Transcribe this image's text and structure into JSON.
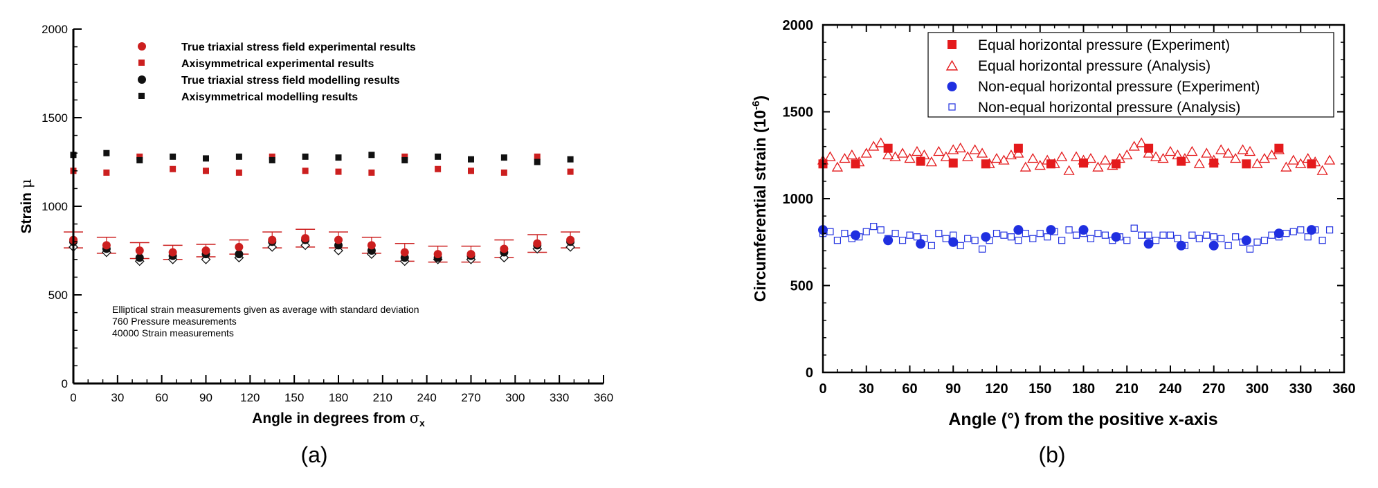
{
  "panels": [
    {
      "caption": "(a)",
      "chart_data": {
        "type": "scatter",
        "title": "",
        "xlabel": "Angle in degrees from σx",
        "xlabel_main": "Angle in degrees from ",
        "xlabel_symbol": "σ",
        "xlabel_sub": "x",
        "ylabel": "Strain μ",
        "ylabel_main": "Strain ",
        "ylabel_symbol": "μ",
        "xlim": [
          0,
          360
        ],
        "ylim": [
          0,
          2000
        ],
        "xticks": [
          "0",
          "30",
          "60",
          "90",
          "120",
          "150",
          "180",
          "210",
          "240",
          "270",
          "300",
          "330",
          "360"
        ],
        "yticks": [
          "0",
          "500",
          "1000",
          "1500",
          "2000"
        ],
        "grid": false,
        "legend_position": "top-left",
        "annotation": [
          "Elliptical strain measurements given as average with standard deviation",
          "760 Pressure measurements",
          "40000 Strain measurements"
        ],
        "series": [
          {
            "name": "True triaxial stress field experimental results",
            "marker": "circle",
            "color": "#cc1f1f",
            "x": [
              0,
              22.5,
              45,
              67.5,
              90,
              112.5,
              135,
              157.5,
              180,
              202.5,
              225,
              247.5,
              270,
              292.5,
              315,
              337.5
            ],
            "y": [
              810,
              780,
              750,
              740,
              750,
              770,
              810,
              820,
              810,
              780,
              740,
              730,
              730,
              760,
              790,
              810
            ],
            "error": [
              45,
              45,
              45,
              40,
              35,
              40,
              45,
              50,
              45,
              45,
              50,
              45,
              45,
              50,
              50,
              45
            ]
          },
          {
            "name": "Axisymmetrical experimental results",
            "marker": "square",
            "color": "#cc1f1f",
            "x": [
              0,
              22.5,
              45,
              67.5,
              90,
              112.5,
              135,
              157.5,
              180,
              202.5,
              225,
              247.5,
              270,
              292.5,
              315,
              337.5
            ],
            "y": [
              1200,
              1190,
              1280,
              1210,
              1200,
              1190,
              1280,
              1200,
              1195,
              1190,
              1280,
              1210,
              1200,
              1190,
              1280,
              1195
            ]
          },
          {
            "name": "True triaxial stress field modelling results",
            "marker": "circle",
            "color": "#111111",
            "x": [
              0,
              22.5,
              45,
              67.5,
              90,
              112.5,
              135,
              157.5,
              180,
              202.5,
              225,
              247.5,
              270,
              292.5,
              315,
              337.5
            ],
            "y": [
              800,
              760,
              710,
              720,
              730,
              730,
              800,
              810,
              780,
              750,
              710,
              710,
              720,
              740,
              780,
              800
            ]
          },
          {
            "name": "Axisymmetrical modelling results",
            "marker": "square",
            "color": "#111111",
            "x": [
              0,
              22.5,
              45,
              67.5,
              90,
              112.5,
              135,
              157.5,
              180,
              202.5,
              225,
              247.5,
              270,
              292.5,
              315,
              337.5
            ],
            "y": [
              1290,
              1300,
              1260,
              1280,
              1270,
              1280,
              1260,
              1280,
              1275,
              1290,
              1260,
              1280,
              1265,
              1275,
              1250,
              1265
            ]
          },
          {
            "name": "",
            "marker": "diamond-open",
            "color": "#111111",
            "legend": false,
            "x": [
              0,
              22.5,
              45,
              67.5,
              90,
              112.5,
              135,
              157.5,
              180,
              202.5,
              225,
              247.5,
              270,
              292.5,
              315,
              337.5
            ],
            "y": [
              770,
              740,
              690,
              700,
              700,
              710,
              770,
              780,
              750,
              730,
              690,
              700,
              700,
              710,
              760,
              770
            ]
          }
        ]
      }
    },
    {
      "caption": "(b)",
      "chart_data": {
        "type": "scatter",
        "title": "",
        "xlabel": "Angle (°) from the positive x-axis",
        "ylabel": "Circumferential strain (10-6)",
        "ylabel_main": "Circumferential strain (10",
        "ylabel_sup": "-6",
        "ylabel_close": ")",
        "xlim": [
          0,
          360
        ],
        "ylim": [
          0,
          2000
        ],
        "xticks": [
          "0",
          "30",
          "60",
          "90",
          "120",
          "150",
          "180",
          "210",
          "240",
          "270",
          "300",
          "330",
          "360"
        ],
        "yticks": [
          "0",
          "500",
          "1000",
          "1500",
          "2000"
        ],
        "grid": false,
        "legend_position": "top-right",
        "series": [
          {
            "name": "Equal horizontal pressure (Experiment)",
            "marker": "square",
            "color": "#e41a1c",
            "x": [
              0,
              22.5,
              45,
              67.5,
              90,
              112.5,
              135,
              157.5,
              180,
              202.5,
              225,
              247.5,
              270,
              292.5,
              315,
              337.5
            ],
            "y": [
              1200,
              1200,
              1290,
              1215,
              1205,
              1200,
              1290,
              1200,
              1205,
              1200,
              1290,
              1215,
              1205,
              1200,
              1290,
              1200
            ]
          },
          {
            "name": "Equal horizontal pressure (Analysis)",
            "marker": "triangle-open",
            "color": "#e41a1c",
            "x": [
              0,
              5,
              10,
              15,
              20,
              25,
              30,
              35,
              40,
              45,
              50,
              55,
              60,
              65,
              70,
              75,
              80,
              85,
              90,
              95,
              100,
              105,
              110,
              115,
              120,
              125,
              130,
              135,
              140,
              145,
              150,
              155,
              160,
              165,
              170,
              175,
              180,
              185,
              190,
              195,
              200,
              205,
              210,
              215,
              220,
              225,
              230,
              235,
              240,
              245,
              250,
              255,
              260,
              265,
              270,
              275,
              280,
              285,
              290,
              295,
              300,
              305,
              310,
              315,
              320,
              325,
              330,
              335,
              340,
              345,
              350
            ],
            "y": [
              1220,
              1240,
              1180,
              1230,
              1250,
              1210,
              1260,
              1300,
              1320,
              1250,
              1240,
              1260,
              1230,
              1270,
              1250,
              1210,
              1270,
              1240,
              1280,
              1290,
              1240,
              1280,
              1260,
              1200,
              1230,
              1220,
              1250,
              1260,
              1180,
              1230,
              1190,
              1220,
              1200,
              1240,
              1160,
              1240,
              1220,
              1230,
              1180,
              1220,
              1190,
              1230,
              1250,
              1300,
              1320,
              1260,
              1240,
              1230,
              1270,
              1250,
              1230,
              1270,
              1200,
              1260,
              1220,
              1280,
              1260,
              1230,
              1280,
              1270,
              1200,
              1230,
              1250,
              1280,
              1180,
              1220,
              1200,
              1230,
              1210,
              1160,
              1220
            ]
          },
          {
            "name": "Non-equal horizontal pressure (Experiment)",
            "marker": "circle",
            "color": "#1f2fe0",
            "x": [
              0,
              22.5,
              45,
              67.5,
              90,
              112.5,
              135,
              157.5,
              180,
              202.5,
              225,
              247.5,
              270,
              292.5,
              315,
              337.5
            ],
            "y": [
              820,
              790,
              760,
              740,
              750,
              780,
              820,
              820,
              820,
              780,
              740,
              730,
              730,
              760,
              800,
              820
            ]
          },
          {
            "name": "Non-equal horizontal pressure (Analysis)",
            "marker": "square-open",
            "color": "#1f2fe0",
            "x": [
              0,
              5,
              10,
              15,
              20,
              25,
              30,
              35,
              40,
              45,
              50,
              55,
              60,
              65,
              70,
              75,
              80,
              85,
              90,
              95,
              100,
              105,
              110,
              115,
              120,
              125,
              130,
              135,
              140,
              145,
              150,
              155,
              160,
              165,
              170,
              175,
              180,
              185,
              190,
              195,
              200,
              205,
              210,
              215,
              220,
              225,
              230,
              235,
              240,
              245,
              250,
              255,
              260,
              265,
              270,
              275,
              280,
              285,
              290,
              295,
              300,
              305,
              310,
              315,
              320,
              325,
              330,
              335,
              340,
              345,
              350
            ],
            "y": [
              800,
              810,
              760,
              800,
              770,
              780,
              810,
              840,
              820,
              770,
              800,
              760,
              790,
              780,
              770,
              730,
              800,
              770,
              790,
              730,
              770,
              760,
              710,
              760,
              800,
              790,
              780,
              760,
              800,
              770,
              800,
              780,
              810,
              760,
              820,
              790,
              800,
              770,
              800,
              790,
              760,
              780,
              760,
              830,
              790,
              790,
              760,
              790,
              790,
              770,
              730,
              790,
              770,
              790,
              780,
              770,
              730,
              780,
              750,
              710,
              750,
              760,
              790,
              780,
              800,
              810,
              820,
              780,
              820,
              760,
              820
            ]
          }
        ]
      }
    }
  ]
}
